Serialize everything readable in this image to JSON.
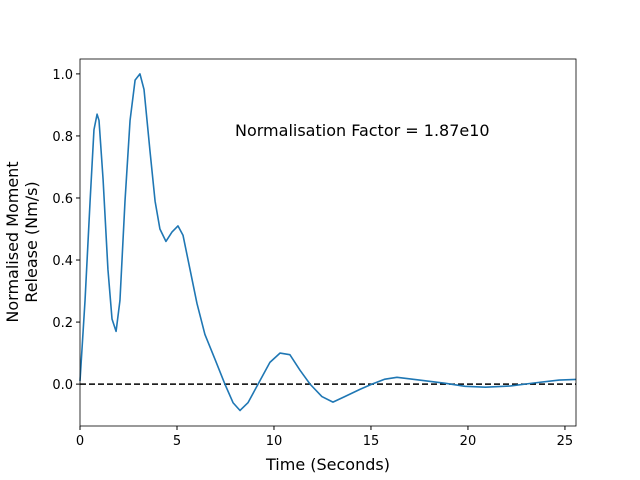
{
  "chart_data": {
    "type": "line",
    "annotation": "Normalisation Factor = 1.87e10",
    "xlabel": "Time (Seconds)",
    "ylabel": [
      "Normalised Moment",
      "Release (Nm/s)"
    ],
    "x": [
      0,
      0.26,
      0.52,
      0.72,
      0.88,
      0.98,
      1.19,
      1.44,
      1.65,
      1.86,
      2.06,
      2.32,
      2.58,
      2.84,
      3.09,
      3.3,
      3.61,
      3.87,
      4.12,
      4.43,
      4.74,
      5.05,
      5.31,
      5.67,
      6.03,
      6.44,
      6.96,
      7.47,
      7.89,
      8.25,
      8.66,
      9.18,
      9.79,
      10.31,
      10.82,
      11.34,
      11.86,
      12.47,
      13.04,
      13.66,
      14.43,
      15.05,
      15.72,
      16.34,
      17.5,
      18.8,
      19.85,
      20.9,
      22.2,
      23.45,
      24.7,
      25.57
    ],
    "series": [
      {
        "color": "#1f77b4",
        "values": [
          0.01,
          0.27,
          0.59,
          0.82,
          0.87,
          0.85,
          0.66,
          0.37,
          0.21,
          0.17,
          0.27,
          0.59,
          0.85,
          0.98,
          1.0,
          0.95,
          0.75,
          0.59,
          0.5,
          0.46,
          0.49,
          0.51,
          0.48,
          0.37,
          0.26,
          0.16,
          0.08,
          0.0,
          -0.06,
          -0.085,
          -0.06,
          0.0,
          0.07,
          0.1,
          0.095,
          0.045,
          0.0,
          -0.04,
          -0.058,
          -0.04,
          -0.017,
          0.0,
          0.016,
          0.022,
          0.013,
          0.003,
          -0.007,
          -0.01,
          -0.006,
          0.004,
          0.013,
          0.015
        ]
      }
    ],
    "hline": {
      "value": 0,
      "color": "#000000"
    },
    "xlim": [
      0,
      25.57
    ],
    "ylim": [
      -0.135,
      1.048
    ],
    "xticks": [
      0,
      5,
      10,
      15,
      20,
      25
    ],
    "yticks": [
      {
        "value": 0,
        "label": "0.0"
      },
      {
        "value": 0.2,
        "label": "0.2"
      },
      {
        "value": 0.4,
        "label": "0.4"
      },
      {
        "value": 0.6,
        "label": "0.6"
      },
      {
        "value": 0.8,
        "label": "0.8"
      },
      {
        "value": 1.0,
        "label": "1.0"
      }
    ]
  }
}
